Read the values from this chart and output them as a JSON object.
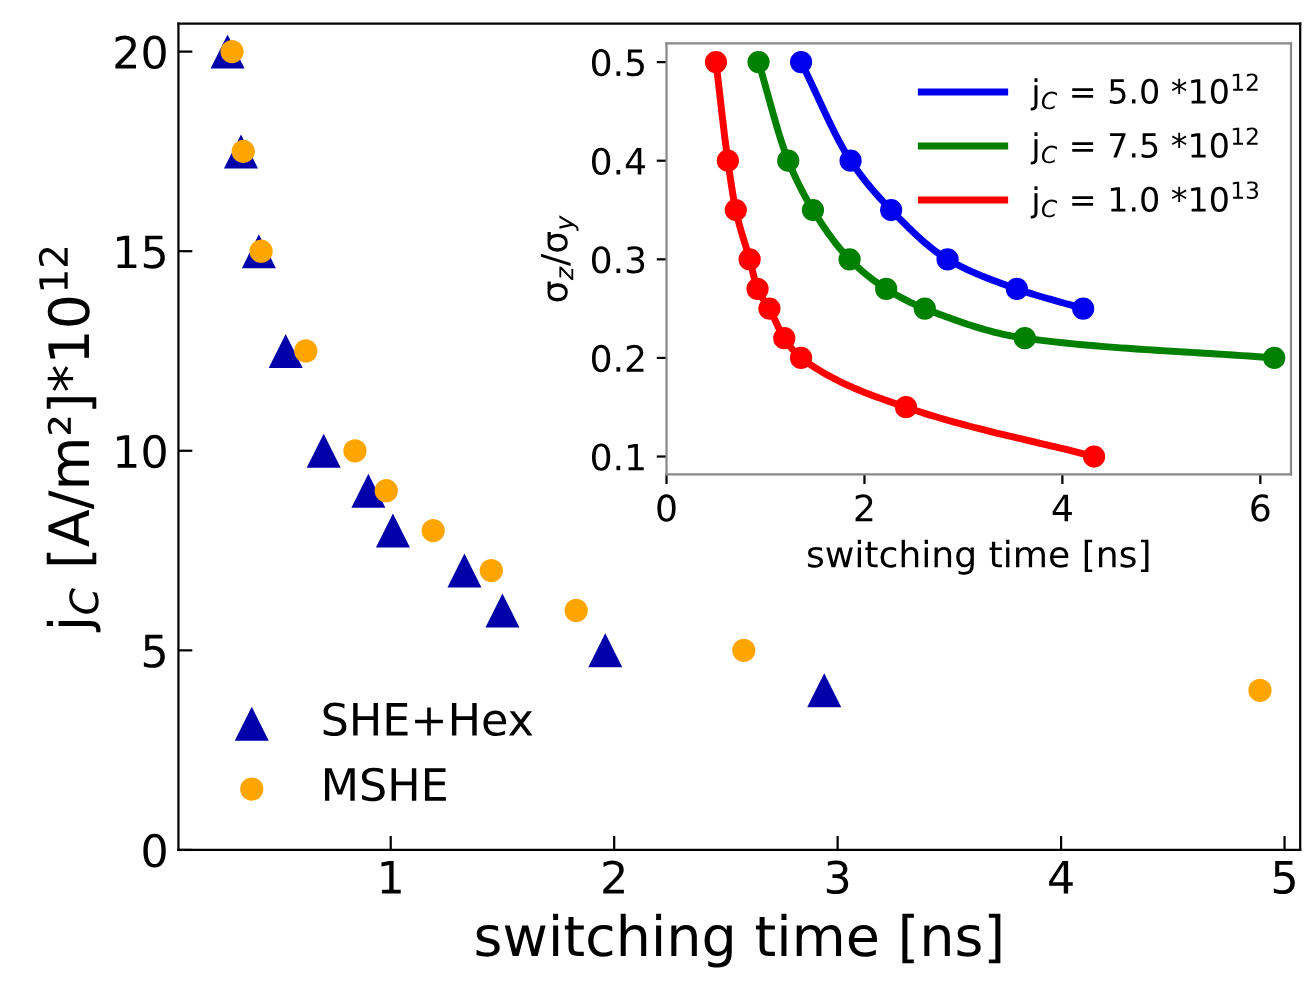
{
  "chart_data": [
    {
      "type": "scatter",
      "xlabel": "switching time [ns]",
      "ylabel": "j$_{C}$ [A/m²]*10$^{12}$",
      "xlim": [
        0.05,
        5.07
      ],
      "ylim": [
        0,
        20.7
      ],
      "xticks": [
        1,
        2,
        3,
        4,
        5
      ],
      "yticks": [
        0,
        5,
        10,
        15,
        20
      ],
      "grid": false,
      "legend": "bottom left",
      "series": [
        {
          "name": "SHE+Hex",
          "color": "#0000aa",
          "marker": "triangle",
          "x": [
            0.27,
            0.33,
            0.41,
            0.53,
            0.7,
            0.9,
            1.01,
            1.33,
            1.5,
            1.96,
            2.94
          ],
          "values": [
            20,
            17.5,
            15,
            12.5,
            10,
            9,
            8,
            7,
            6,
            5,
            4
          ]
        },
        {
          "name": "MSHE",
          "color": "#ffa500",
          "marker": "circle",
          "x": [
            0.29,
            0.34,
            0.42,
            0.62,
            0.84,
            0.98,
            1.19,
            1.45,
            1.83,
            2.58,
            4.89
          ],
          "values": [
            20,
            17.5,
            15,
            12.5,
            10,
            9,
            8,
            7,
            6,
            5,
            4
          ]
        }
      ]
    },
    {
      "type": "line",
      "xlabel": "switching time [ns]",
      "ylabel": "σ$_{z}$/σ$_{y}$",
      "xlim": [
        0,
        6.31
      ],
      "ylim": [
        0.082,
        0.519
      ],
      "xticks": [
        0,
        2,
        4,
        6
      ],
      "yticks": [
        0.1,
        0.2,
        0.3,
        0.4,
        0.5
      ],
      "grid": false,
      "legend": "top right",
      "marker": "circle",
      "series": [
        {
          "name": "j$_{C}$ = 5.0 *10$^{12}$",
          "color": "#0000ee",
          "x": [
            1.36,
            1.86,
            2.27,
            2.84,
            3.54,
            4.21
          ],
          "values": [
            0.5,
            0.4,
            0.35,
            0.3,
            0.27,
            0.25
          ]
        },
        {
          "name": "j$_{C}$ = 7.5 *10$^{12}$",
          "color": "#008000",
          "x": [
            0.93,
            1.23,
            1.48,
            1.85,
            2.22,
            2.61,
            3.62,
            6.14
          ],
          "values": [
            0.5,
            0.4,
            0.35,
            0.3,
            0.27,
            0.25,
            0.22,
            0.2
          ]
        },
        {
          "name": "j$_{C}$ = 1.0 *10$^{13}$",
          "color": "#ff0000",
          "x": [
            0.5,
            0.62,
            0.7,
            0.84,
            0.92,
            1.04,
            1.19,
            1.36,
            2.42,
            4.32
          ],
          "values": [
            0.5,
            0.4,
            0.35,
            0.3,
            0.27,
            0.25,
            0.22,
            0.2,
            0.15,
            0.1
          ]
        }
      ]
    }
  ]
}
